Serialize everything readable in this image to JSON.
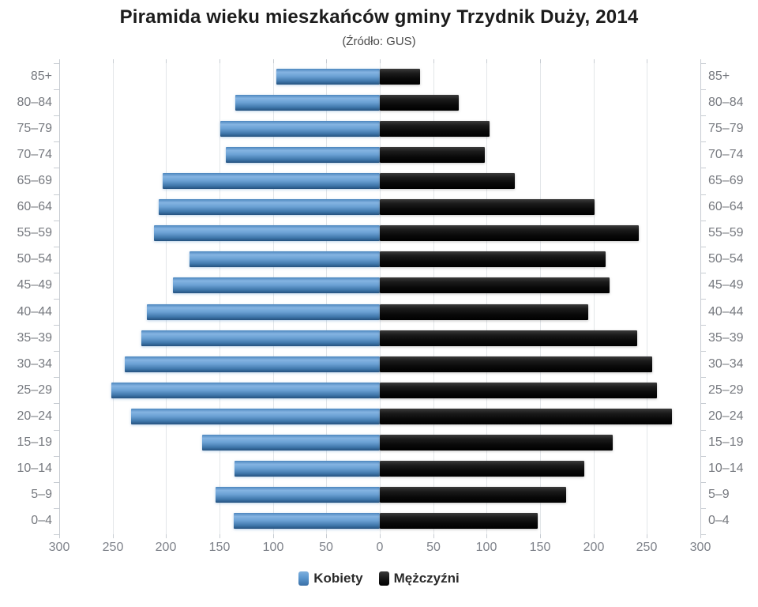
{
  "title": "Piramida wieku mieszkańców gminy Trzydnik Duży, 2014",
  "subtitle": "(Źródło: GUS)",
  "chart_data": {
    "type": "bar",
    "orientation": "horizontal-pyramid",
    "title": "Piramida wieku mieszkańców gminy Trzydnik Duży, 2014",
    "subtitle": "(Źródło: GUS)",
    "categories": [
      "85+",
      "80–84",
      "75–79",
      "70–74",
      "65–69",
      "60–64",
      "55–59",
      "50–54",
      "45–49",
      "40–44",
      "35–39",
      "30–34",
      "25–29",
      "20–24",
      "15–19",
      "10–14",
      "5–9",
      "0–4"
    ],
    "series": [
      {
        "name": "Kobiety",
        "side": "left",
        "color": "#5b97cf",
        "values": [
          97,
          135,
          149,
          144,
          203,
          207,
          211,
          178,
          194,
          218,
          223,
          239,
          251,
          233,
          166,
          136,
          154,
          137
        ]
      },
      {
        "name": "Mężczyźni",
        "side": "right",
        "color": "#141414",
        "values": [
          38,
          74,
          103,
          98,
          126,
          201,
          242,
          211,
          215,
          195,
          241,
          255,
          259,
          273,
          218,
          191,
          174,
          148
        ]
      }
    ],
    "xlabel": "",
    "ylabel": "",
    "axis": {
      "max": 300,
      "step": 50,
      "tick_labels": [
        "300",
        "250",
        "200",
        "150",
        "100",
        "50",
        "0",
        "50",
        "100",
        "150",
        "200",
        "250",
        "300"
      ]
    },
    "grid": true,
    "legend_position": "bottom",
    "colors": {
      "women_bar": "#5b97cf",
      "men_bar": "#141414",
      "gridline": "#e3e6e9",
      "axis": "#c7ccd2",
      "label_text": "#76797f"
    }
  }
}
